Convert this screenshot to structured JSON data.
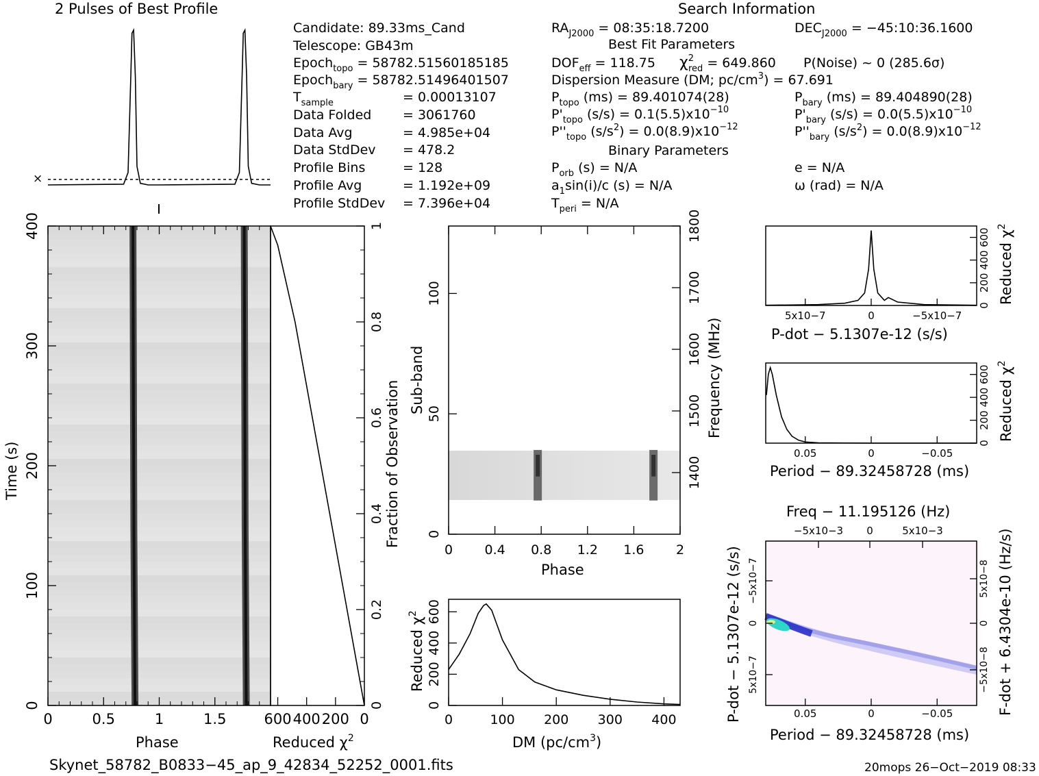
{
  "profile_title": "2 Pulses of Best Profile",
  "search_title": "Search Information",
  "best_fit_title": "Best Fit Parameters",
  "binary_title": "Binary Parameters",
  "candidate": {
    "candidate": "Candidate:  89.33ms_Cand",
    "telescope": "Telescope:  GB43m",
    "epoch_topo_label": "Epoch",
    "epoch_topo_sub": "topo",
    "epoch_topo_val": " = 58782.51560185185",
    "epoch_bary_label": "Epoch",
    "epoch_bary_sub": "bary",
    "epoch_bary_val": " = 58782.51496401507",
    "tsample_label": "T",
    "tsample_sub": "sample",
    "tsample_val": "=   0.00013107",
    "data_folded_label": "Data Folded",
    "data_folded_val": "=   3061760",
    "data_avg_label": "Data Avg",
    "data_avg_val": "=   4.985e+04",
    "data_stddev_label": "Data StdDev",
    "data_stddev_val": "=   478.2",
    "profile_bins_label": "Profile Bins",
    "profile_bins_val": "=   128",
    "profile_avg_label": "Profile Avg",
    "profile_avg_val": "=   1.192e+09",
    "profile_stddev_label": "Profile StdDev",
    "profile_stddev_val": "=   7.396e+04"
  },
  "search_info": {
    "ra_label": "RA",
    "ra_sub": "J2000",
    "ra_val": " = 08:35:18.7200",
    "dec_label": "DEC",
    "dec_sub": "J2000",
    "dec_val": " = −45:10:36.1600",
    "dof_label": "DOF",
    "dof_sub": "eff",
    "dof_val": " = 118.75",
    "chi_label": "χ",
    "chi_sup": "2",
    "chi_sub": "red",
    "chi_val": " = 649.860",
    "pnoise": "P(Noise) ~ 0    (285.6σ)",
    "dm_label": "Dispersion Measure (DM; pc/cm",
    "dm_sup": "3",
    "dm_val": ") = 67.691",
    "ptopo_label": "P",
    "ptopo_sub": "topo",
    "ptopo_val": " (ms) =  89.401074(28)",
    "pbary_label": "P",
    "pbary_sub": "bary",
    "pbary_val": " (ms) =  89.404890(28)",
    "pdtopo_label": "P'",
    "pdtopo_sub": "topo",
    "pdtopo_val": " (s/s) =  0.1(5.5)x10",
    "pdtopo_exp": "−10",
    "pdbary_label": "P'",
    "pdbary_sub": "bary",
    "pdbary_val": " (s/s) = 0.0(5.5)x10",
    "pdbary_exp": "−10",
    "pddtopo_label": "P''",
    "pddtopo_sub": "topo",
    "pddtopo_val": " (s/s",
    "pddtopo_s2": "2",
    "pddtopo_val2": ") = 0.0(8.9)x10",
    "pddtopo_exp": "−12",
    "pddbary_label": "P''",
    "pddbary_sub": "bary",
    "pddbary_val": " (s/s",
    "pddbary_s2": "2",
    "pddbary_val2": ") = 0.0(8.9)x10",
    "pddbary_exp": "−12",
    "porb_label": "P",
    "porb_sub": "orb",
    "porb_val": " (s) = N/A",
    "e_val": "e = N/A",
    "a1_label": "a",
    "a1_sub": "1",
    "a1_val": "sin(i)/c (s) = N/A",
    "omega_val": "ω (rad) = N/A",
    "tperi_label": "T",
    "tperi_sub": "peri",
    "tperi_val": " = N/A"
  },
  "colors": {
    "background": "#ffffff",
    "ink": "#000000",
    "grey_band": "#555555",
    "ppdot_blue": "#2a32c8",
    "ppdot_cyan": "#2fd6c8"
  },
  "chart_data": [
    {
      "type": "line",
      "name": "pulse_profile",
      "title": "2 Pulses of Best Profile",
      "x": [
        0.0,
        0.68,
        0.72,
        0.745,
        0.755,
        0.77,
        0.785,
        0.8,
        0.83,
        0.9,
        1.0,
        1.68,
        1.72,
        1.745,
        1.755,
        1.77,
        1.785,
        1.8,
        1.83,
        1.9,
        2.0
      ],
      "y": [
        0.0,
        0.005,
        0.08,
        0.72,
        0.98,
        1.0,
        0.7,
        0.12,
        0.01,
        0.0,
        0.0,
        0.005,
        0.08,
        0.72,
        0.98,
        1.0,
        0.7,
        0.12,
        0.01,
        0.0,
        0.0
      ],
      "xlim": [
        0,
        2
      ]
    },
    {
      "type": "heatmap",
      "name": "time_vs_phase",
      "xlabel": "Phase",
      "ylabel": "Time (s)",
      "xticks": [
        "0",
        "0.5",
        "1",
        "1.5"
      ],
      "yticks": [
        "0",
        "100",
        "200",
        "300",
        "400"
      ],
      "xlim": [
        0,
        2
      ],
      "ylim": [
        0,
        400
      ],
      "pulse_phases": [
        0.77,
        1.77
      ]
    },
    {
      "type": "line",
      "name": "chi2_vs_time",
      "xlabel": "Reduced χ2",
      "ylabel": "Fraction of Observation",
      "xticks": [
        "600",
        "400",
        "200",
        "0"
      ],
      "yticks": [
        "0",
        "0.2",
        "0.4",
        "0.6",
        "0.8",
        "1"
      ],
      "x": [
        0,
        120,
        240,
        360,
        480,
        600,
        650
      ],
      "y": [
        0.0,
        0.2,
        0.4,
        0.6,
        0.8,
        0.96,
        1.0
      ],
      "xlim": [
        650,
        0
      ],
      "ylim": [
        0,
        1
      ]
    },
    {
      "type": "heatmap",
      "name": "subband_vs_phase",
      "xlabel": "Phase",
      "ylabel": "Sub-band",
      "y2label": "Frequency (MHz)",
      "xticks": [
        "0",
        "0.4",
        "0.8",
        "1.2",
        "1.6",
        "2"
      ],
      "yticks": [
        "0",
        "50",
        "100"
      ],
      "y2ticks": [
        "1400",
        "1500",
        "1600",
        "1700",
        "1800"
      ],
      "xlim": [
        0,
        2
      ],
      "ylim": [
        0,
        128
      ],
      "active_band": [
        14,
        35
      ],
      "pulse_phases": [
        0.77,
        1.77
      ]
    },
    {
      "type": "line",
      "name": "chi2_vs_dm",
      "xlabel": "DM (pc/cm3)",
      "ylabel": "Reduced χ2",
      "xticks": [
        "0",
        "100",
        "200",
        "300",
        "400"
      ],
      "yticks": [
        "0",
        "200",
        "400",
        "600"
      ],
      "x": [
        0,
        20,
        40,
        55,
        65,
        70,
        80,
        100,
        130,
        160,
        200,
        250,
        300,
        350,
        400,
        430
      ],
      "y": [
        230,
        330,
        460,
        590,
        640,
        650,
        610,
        420,
        230,
        150,
        100,
        65,
        40,
        22,
        10,
        6
      ],
      "xlim": [
        0,
        430
      ],
      "ylim": [
        0,
        680
      ]
    },
    {
      "type": "line",
      "name": "chi2_vs_pdot",
      "xlabel": "P-dot − 5.1307e-12 (s/s)",
      "ylabel": "Reduced χ2",
      "xticks": [
        "5x10−7",
        "0",
        "−5x10−7"
      ],
      "yticks": [
        "0",
        "200",
        "400",
        "600"
      ],
      "x": [
        8e-07,
        4e-07,
        2e-07,
        1e-07,
        5e-08,
        2e-08,
        0,
        -2e-08,
        -5e-08,
        -1e-07,
        -1.3e-07,
        -2e-07,
        -4e-07,
        -8e-07
      ],
      "y": [
        2,
        8,
        20,
        45,
        110,
        320,
        660,
        320,
        110,
        45,
        70,
        30,
        8,
        2
      ],
      "xlim": [
        8e-07,
        -8e-07
      ],
      "ylim": [
        0,
        700
      ]
    },
    {
      "type": "line",
      "name": "chi2_vs_period",
      "xlabel": "Period − 89.32458728 (ms)",
      "ylabel": "Reduced χ2",
      "xticks": [
        "0.05",
        "0",
        "−0.05"
      ],
      "yticks": [
        "0",
        "200",
        "400",
        "600"
      ],
      "x": [
        0.0795,
        0.078,
        0.0765,
        0.075,
        0.072,
        0.068,
        0.064,
        0.06,
        0.055,
        0.05,
        0.04,
        0.0,
        -0.08
      ],
      "y": [
        420,
        600,
        660,
        600,
        420,
        230,
        120,
        60,
        25,
        10,
        3,
        0,
        0
      ],
      "xlim": [
        0.08,
        -0.08
      ],
      "ylim": [
        0,
        700
      ]
    },
    {
      "type": "heatmap",
      "name": "ppdot_plane",
      "title": "Freq − 11.195126 (Hz)",
      "xlabel": "Period − 89.32458728 (ms)",
      "ylabel": "P-dot − 5.1307e-12 (s/s)",
      "y2label": "F-dot + 6.4304e-10 (Hz/s)",
      "xticks": [
        "0.05",
        "0",
        "−0.05"
      ],
      "x2ticks": [
        "−5x10−3",
        "0",
        "5x10−3"
      ],
      "yticks": [
        "−5x10−7",
        "0",
        "5x10−7"
      ],
      "y2ticks": [
        "5x10−8",
        "0",
        "−5x10−8"
      ],
      "xlim": [
        0.08,
        -0.08
      ],
      "peak": {
        "period": 0.078,
        "pdot": 0.0
      }
    }
  ],
  "footer_left": "Skynet_58782_B0833−45_ap_9_42834_52252_0001.fits",
  "footer_right": "20mops 26−Oct−2019 08:33"
}
